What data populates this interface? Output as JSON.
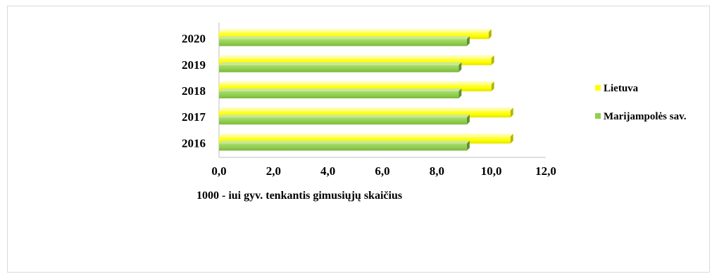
{
  "chart_data": {
    "type": "bar",
    "orientation": "horizontal",
    "categories": [
      "2016",
      "2017",
      "2018",
      "2019",
      "2020"
    ],
    "series": [
      {
        "name": "Lietuva",
        "values": [
          10.7,
          10.7,
          10.0,
          10.0,
          9.9
        ],
        "color": "#ffff00"
      },
      {
        "name": "Marijampolės sav.",
        "values": [
          9.1,
          9.1,
          8.8,
          8.8,
          9.1
        ],
        "color": "#92d050"
      }
    ],
    "xlim": [
      0,
      12
    ],
    "xticks": [
      "0,0",
      "2,0",
      "4,0",
      "6,0",
      "8,0",
      "10,0",
      "12,0"
    ],
    "xlabel": "1000 - iui gyv. tenkantis gimusiųjų  skaičius",
    "legend_position": "right",
    "grid": false
  }
}
